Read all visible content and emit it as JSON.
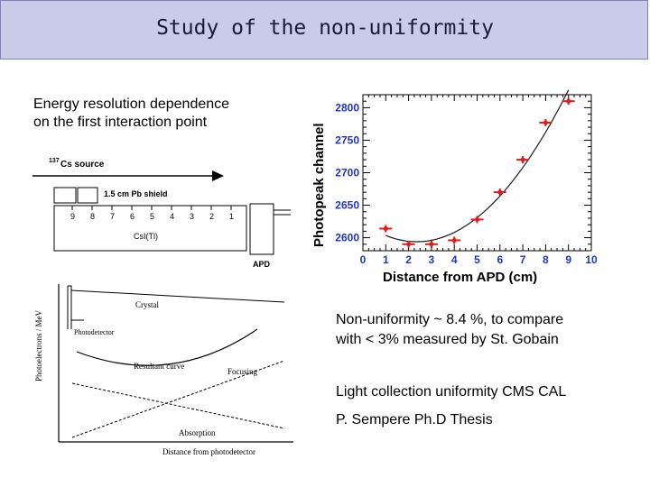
{
  "title": "Study of the non-uniformity",
  "energy_text": [
    "Energy resolution dependence",
    "on the first interaction point"
  ],
  "setup": {
    "source_label": "Cs source",
    "source_isotope": "137",
    "shield_label": "1.5 cm Pb shield",
    "positions": [
      "9",
      "8",
      "7",
      "6",
      "5",
      "4",
      "3",
      "2",
      "1"
    ],
    "crystal_label": "CsI(Tl)",
    "apd_label": "APD"
  },
  "curves": {
    "ylabel": "Photoelectrons / MeV",
    "xlabel": "Distance from photodetector",
    "crystal": "Crystal",
    "photodetector": "Photodetector",
    "resultant": "Resultant curve",
    "focusing": "Focusing",
    "absorption": "Absorption"
  },
  "notes": [
    "Non-uniformity ~ 8.4 %, to compare",
    "with < 3% measured by St. Gobain",
    "Light collection uniformity CMS CAL",
    "P. Sempere Ph.D Thesis"
  ],
  "chart_data": {
    "type": "scatter",
    "title": "",
    "xlabel": "Distance from APD (cm)",
    "ylabel": "Photopeak channel",
    "xlim": [
      0,
      10
    ],
    "ylim": [
      2580,
      2820
    ],
    "x_ticks": [
      0,
      1,
      2,
      3,
      4,
      5,
      6,
      7,
      8,
      9,
      10
    ],
    "y_ticks": [
      2600,
      2650,
      2700,
      2750,
      2800
    ],
    "series": [
      {
        "x": [
          1,
          2,
          3,
          4,
          5,
          6,
          7,
          8,
          9
        ],
        "y": [
          2614,
          2590,
          2590,
          2596,
          2628,
          2670,
          2720,
          2777,
          2810
        ],
        "color": "#e01b1b"
      }
    ],
    "fit_curve": true,
    "grid": false
  }
}
